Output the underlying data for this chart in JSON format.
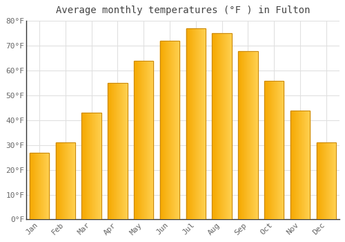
{
  "title": "Average monthly temperatures (°F ) in Fulton",
  "months": [
    "Jan",
    "Feb",
    "Mar",
    "Apr",
    "May",
    "Jun",
    "Jul",
    "Aug",
    "Sep",
    "Oct",
    "Nov",
    "Dec"
  ],
  "values": [
    27,
    31,
    43,
    55,
    64,
    72,
    77,
    75,
    68,
    56,
    44,
    31
  ],
  "bar_color_left": "#F5A800",
  "bar_color_right": "#FFD050",
  "bar_edge_color": "#C8860A",
  "ylim": [
    0,
    80
  ],
  "yticks": [
    0,
    10,
    20,
    30,
    40,
    50,
    60,
    70,
    80
  ],
  "ytick_labels": [
    "0°F",
    "10°F",
    "20°F",
    "30°F",
    "40°F",
    "50°F",
    "60°F",
    "70°F",
    "80°F"
  ],
  "background_color": "#FFFFFF",
  "grid_color": "#E0E0E0",
  "title_fontsize": 10,
  "tick_fontsize": 8,
  "font_family": "monospace",
  "tick_color": "#666666",
  "spine_color": "#999999",
  "bar_width": 0.75
}
